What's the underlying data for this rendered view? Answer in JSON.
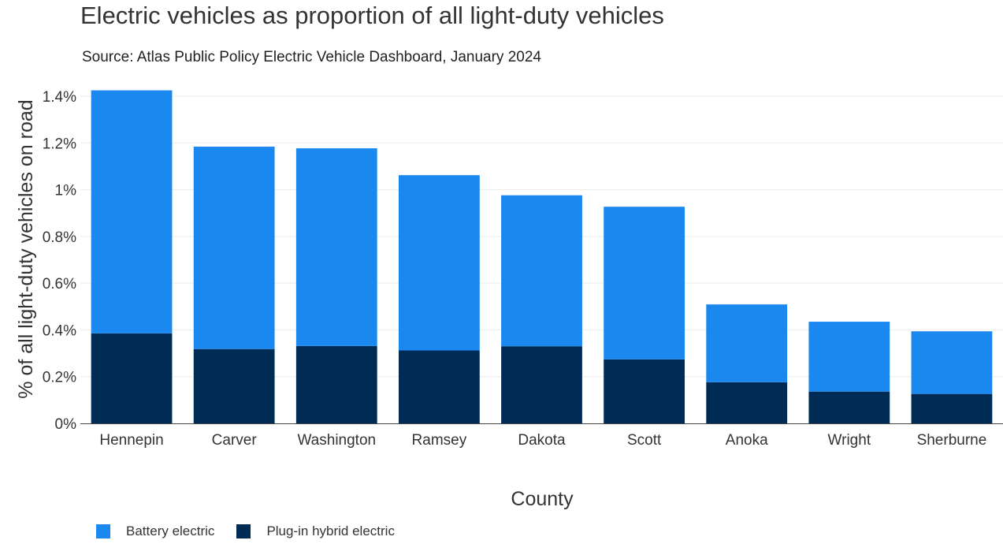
{
  "colors": {
    "battery_electric": "#1a88ef",
    "plug_in_hybrid": "#002b55"
  },
  "chart_data": {
    "type": "bar",
    "stacked": true,
    "title": "Electric vehicles as proportion of all light-duty vehicles",
    "subtitle": "Source: Atlas Public Policy Electric Vehicle Dashboard, January 2024",
    "xlabel": "County",
    "ylabel": "% of all light-duty vehicles on road",
    "categories": [
      "Hennepin",
      "Carver",
      "Washington",
      "Ramsey",
      "Dakota",
      "Scott",
      "Anoka",
      "Wright",
      "Sherburne"
    ],
    "series": [
      {
        "name": "Plug-in hybrid electric",
        "values": [
          0.385,
          0.318,
          0.331,
          0.312,
          0.33,
          0.274,
          0.176,
          0.136,
          0.126
        ]
      },
      {
        "name": "Battery electric",
        "values": [
          1.04,
          0.866,
          0.846,
          0.75,
          0.646,
          0.653,
          0.333,
          0.299,
          0.268
        ]
      }
    ],
    "ylim": [
      0,
      1.4
    ],
    "yticks": [
      0,
      0.2,
      0.4,
      0.6,
      0.8,
      1.0,
      1.2,
      1.4
    ],
    "ytick_labels": [
      "0%",
      "0.2%",
      "0.4%",
      "0.6%",
      "0.8%",
      "1%",
      "1.2%",
      "1.4%"
    ],
    "grid": true,
    "legend": {
      "placement": "bottom-left",
      "entries": [
        "Battery electric",
        "Plug-in hybrid electric"
      ]
    }
  }
}
